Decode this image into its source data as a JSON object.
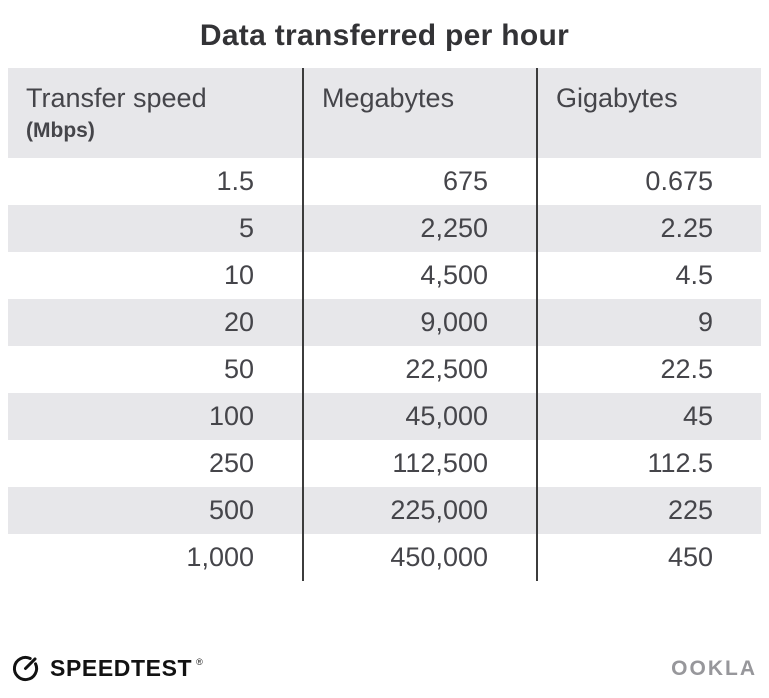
{
  "title": "Data transferred per hour",
  "table": {
    "columns": [
      {
        "label": "Transfer speed",
        "sublabel": "(Mbps)"
      },
      {
        "label": "Megabytes"
      },
      {
        "label": "Gigabytes"
      }
    ],
    "rows": [
      [
        "1.5",
        "675",
        "0.675"
      ],
      [
        "5",
        "2,250",
        "2.25"
      ],
      [
        "10",
        "4,500",
        "4.5"
      ],
      [
        "20",
        "9,000",
        "9"
      ],
      [
        "50",
        "22,500",
        "22.5"
      ],
      [
        "100",
        "45,000",
        "45"
      ],
      [
        "250",
        "112,500",
        "112.5"
      ],
      [
        "500",
        "225,000",
        "225"
      ],
      [
        "1,000",
        "450,000",
        "450"
      ]
    ]
  },
  "chart_data": {
    "type": "table",
    "title": "Data transferred per hour",
    "columns": [
      "Transfer speed (Mbps)",
      "Megabytes",
      "Gigabytes"
    ],
    "rows": [
      [
        1.5,
        675,
        0.675
      ],
      [
        5,
        2250,
        2.25
      ],
      [
        10,
        4500,
        4.5
      ],
      [
        20,
        9000,
        9
      ],
      [
        50,
        22500,
        22.5
      ],
      [
        100,
        45000,
        45
      ],
      [
        250,
        112500,
        112.5
      ],
      [
        500,
        225000,
        225
      ],
      [
        1000,
        450000,
        450
      ]
    ]
  },
  "footer": {
    "brand": "SPEEDTEST",
    "brand_mark": "®",
    "attribution": "OOKLA"
  },
  "colors": {
    "title_text": "#333336",
    "header_bg": "#e7e7ea",
    "row_alt_bg": "#e7e7ea",
    "text": "#45454a",
    "divider": "#3c3c3c",
    "brand_color": "#121212",
    "ookla_color": "#97979b"
  }
}
